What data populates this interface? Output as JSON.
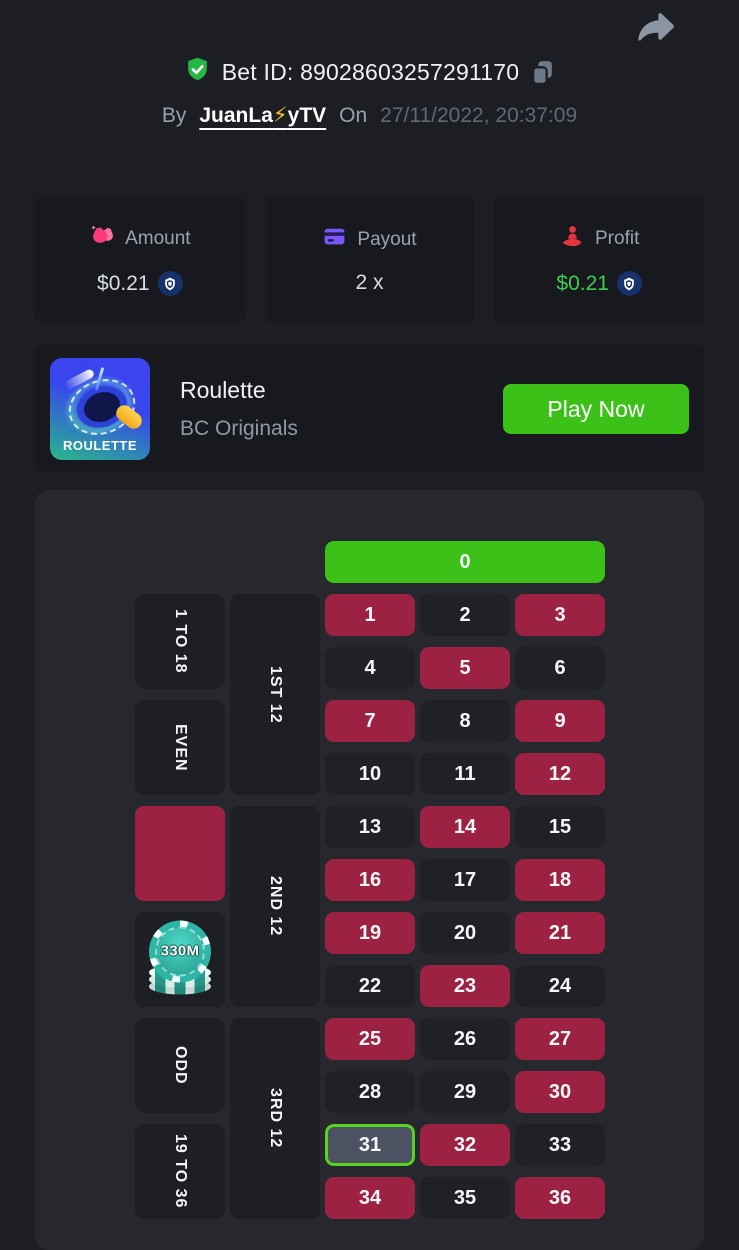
{
  "header": {
    "bet_id_prefix": "Bet ID:",
    "bet_id": "89028603257291170",
    "by_label": "By",
    "username_parts": [
      "JuanLa",
      "⚡",
      "yTV"
    ],
    "on_label": "On",
    "timestamp": "27/11/2022, 20:37:09"
  },
  "stats": {
    "amount": {
      "label": "Amount",
      "value": "$0.21",
      "icon": "money-bags-icon",
      "currency_icon": "cro-coin-icon"
    },
    "payout": {
      "label": "Payout",
      "value": "2 x",
      "icon": "credit-card-icon"
    },
    "profit": {
      "label": "Profit",
      "value": "$0.21",
      "icon": "hand-person-icon",
      "currency_icon": "cro-coin-icon",
      "value_color": "#3bce4e"
    }
  },
  "game": {
    "title": "Roulette",
    "provider": "BC Originals",
    "play_label": "Play Now",
    "thumb_label": "ROULETTE"
  },
  "board": {
    "zero_label": "0",
    "numbers": [
      1,
      2,
      3,
      4,
      5,
      6,
      7,
      8,
      9,
      10,
      11,
      12,
      13,
      14,
      15,
      16,
      17,
      18,
      19,
      20,
      21,
      22,
      23,
      24,
      25,
      26,
      27,
      28,
      29,
      30,
      31,
      32,
      33,
      34,
      35,
      36
    ],
    "red_numbers": [
      1,
      3,
      5,
      7,
      9,
      12,
      14,
      16,
      18,
      19,
      21,
      23,
      25,
      27,
      30,
      32,
      34,
      36
    ],
    "winning_number": 31,
    "outside_left": [
      {
        "label": "1 TO 18",
        "name": "low-bet"
      },
      {
        "label": "EVEN",
        "name": "even-bet"
      },
      {
        "label": "",
        "name": "red-bet",
        "style": "red"
      },
      {
        "label": "",
        "name": "black-bet",
        "chip": "330M"
      },
      {
        "label": "ODD",
        "name": "odd-bet"
      },
      {
        "label": "19 TO 36",
        "name": "high-bet"
      }
    ],
    "dozens": [
      {
        "label": "1ST 12",
        "name": "first-dozen-bet"
      },
      {
        "label": "2ND 12",
        "name": "second-dozen-bet"
      },
      {
        "label": "3RD 12",
        "name": "third-dozen-bet"
      }
    ],
    "chip_label": "330M"
  },
  "colors": {
    "page_background": "#1c1e23",
    "card_background": "#17191e",
    "panel_background": "#26282e",
    "accent_green": "#3bc117",
    "red_cell": "#9c2143",
    "profit_green": "#3bce4e",
    "winning_border": "#56d41f",
    "chip_teal": "#2db5a5"
  }
}
